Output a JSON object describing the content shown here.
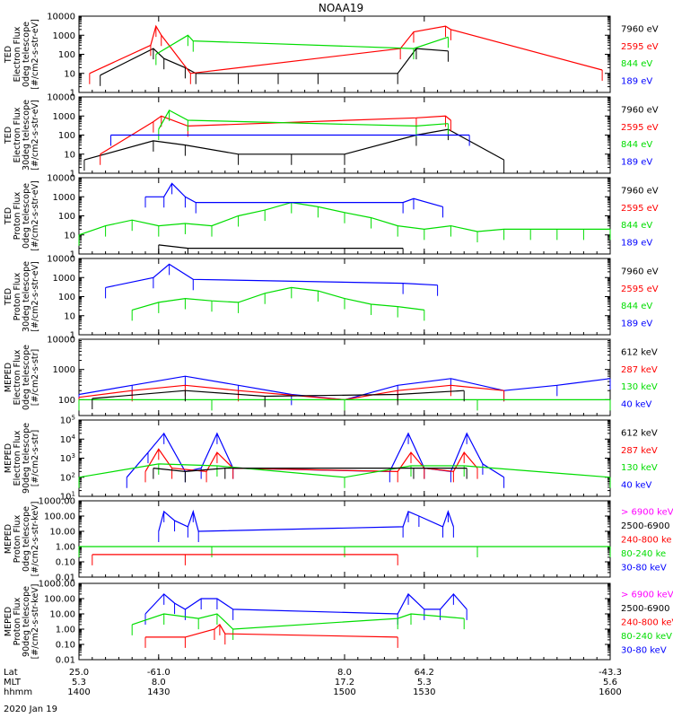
{
  "title": "NOAA19",
  "colors": {
    "black": "#000000",
    "red": "#ff0000",
    "green": "#00ff00",
    "blue": "#0000ff",
    "magenta": "#ff00ff",
    "lime_label": "#00dd00"
  },
  "chart_data": [
    {
      "type": "line",
      "ylabel": [
        "TED",
        "Electron Flux",
        "0deg telescope",
        "[#/cm2-s-str-eV]"
      ],
      "yscale": "log",
      "ylim": [
        1,
        10000
      ],
      "yticks": [
        "1",
        "10",
        "100",
        "1000",
        "10000"
      ],
      "legend": [
        {
          "label": "7960 eV",
          "color": "#000000"
        },
        {
          "label": "2595 eV",
          "color": "#ff0000"
        },
        {
          "label": "844 eV",
          "color": "#00dd00"
        },
        {
          "label": "189 eV",
          "color": "#0000ff"
        }
      ],
      "series": [
        {
          "name": "7960 eV",
          "color": "#000000",
          "x": [
            1408,
            1428,
            1432,
            1440,
            1444,
            1460,
            1475,
            1490,
            1520,
            1527,
            1539
          ],
          "values": [
            8,
            200,
            60,
            20,
            10,
            10,
            10,
            10,
            10,
            200,
            150
          ]
        },
        {
          "name": "2595 eV",
          "color": "#ff0000",
          "x": [
            1404,
            1427,
            1429,
            1431,
            1442,
            1521,
            1526,
            1538,
            1540,
            1597
          ],
          "values": [
            10,
            300,
            3000,
            1000,
            10,
            200,
            1500,
            3000,
            2000,
            15
          ]
        },
        {
          "name": "844 eV",
          "color": "#00dd00",
          "x": [
            1429,
            1441,
            1443,
            1526,
            1539
          ],
          "values": [
            100,
            1000,
            500,
            200,
            800
          ]
        }
      ]
    },
    {
      "type": "line",
      "ylabel": [
        "TED",
        "Electron Flux",
        "30deg telescope",
        "[#/cm2-s-str-eV]"
      ],
      "yscale": "log",
      "ylim": [
        1,
        10000
      ],
      "yticks": [
        "1",
        "10",
        "100",
        "1000",
        "10000"
      ],
      "legend": [
        {
          "label": "7960 eV",
          "color": "#000000"
        },
        {
          "label": "2595 eV",
          "color": "#ff0000"
        },
        {
          "label": "844 eV",
          "color": "#00dd00"
        },
        {
          "label": "189 eV",
          "color": "#0000ff"
        }
      ],
      "series": [
        {
          "name": "7960 eV",
          "color": "#000000",
          "x": [
            1402,
            1428,
            1440,
            1460,
            1480,
            1500,
            1527,
            1539,
            1560
          ],
          "values": [
            5,
            50,
            30,
            10,
            10,
            10,
            100,
            200,
            5
          ]
        },
        {
          "name": "2595 eV",
          "color": "#ff0000",
          "x": [
            1408,
            1428,
            1431,
            1441,
            1527,
            1538,
            1540
          ],
          "values": [
            10,
            500,
            1000,
            300,
            800,
            1000,
            600
          ]
        },
        {
          "name": "844 eV",
          "color": "#00dd00",
          "x": [
            1430,
            1434,
            1441,
            1527,
            1539
          ],
          "values": [
            200,
            2000,
            600,
            300,
            400
          ]
        },
        {
          "name": "189 eV",
          "color": "#0000ff",
          "x": [
            1412,
            1547
          ],
          "values": [
            100,
            100
          ]
        }
      ]
    },
    {
      "type": "line",
      "ylabel": [
        "TED",
        "Proton Flux",
        "0deg telescope",
        "[#/cm2-s-str-eV]"
      ],
      "yscale": "log",
      "ylim": [
        1,
        10000
      ],
      "yticks": [
        "1",
        "10",
        "100",
        "1000",
        "10000"
      ],
      "legend": [
        {
          "label": "7960 eV",
          "color": "#000000"
        },
        {
          "label": "2595 eV",
          "color": "#ff0000"
        },
        {
          "label": "844 eV",
          "color": "#00dd00"
        },
        {
          "label": "189 eV",
          "color": "#0000ff"
        }
      ],
      "series": [
        {
          "name": "844 eV",
          "color": "#00dd00",
          "x": [
            1400,
            1410,
            1420,
            1430,
            1440,
            1450,
            1460,
            1470,
            1480,
            1490,
            1500,
            1510,
            1520,
            1530,
            1540,
            1550,
            1560,
            1570,
            1580,
            1590,
            1600
          ],
          "values": [
            10,
            30,
            60,
            30,
            40,
            30,
            100,
            200,
            500,
            300,
            150,
            80,
            30,
            20,
            30,
            15,
            20,
            20,
            20,
            20,
            20
          ]
        },
        {
          "name": "189 eV",
          "color": "#0000ff",
          "x": [
            1425,
            1432,
            1435,
            1440,
            1444,
            1522,
            1526,
            1537
          ],
          "values": [
            1000,
            1000,
            5000,
            1000,
            500,
            500,
            800,
            300
          ]
        },
        {
          "name": "7960 eV",
          "color": "#000000",
          "x": [
            1430,
            1441,
            1522
          ],
          "values": [
            3,
            2,
            2
          ]
        }
      ]
    },
    {
      "type": "line",
      "ylabel": [
        "TED",
        "Proton Flux",
        "30deg telescope",
        "[#/cm2-s-str-eV]"
      ],
      "yscale": "log",
      "ylim": [
        1,
        10000
      ],
      "yticks": [
        "1",
        "10",
        "100",
        "1000",
        "10000"
      ],
      "legend": [
        {
          "label": "7960 eV",
          "color": "#000000"
        },
        {
          "label": "2595 eV",
          "color": "#ff0000"
        },
        {
          "label": "844 eV",
          "color": "#00dd00"
        },
        {
          "label": "189 eV",
          "color": "#0000ff"
        }
      ],
      "series": [
        {
          "name": "844 eV",
          "color": "#00dd00",
          "x": [
            1420,
            1430,
            1440,
            1450,
            1460,
            1470,
            1480,
            1490,
            1500,
            1510,
            1520,
            1530
          ],
          "values": [
            20,
            50,
            80,
            60,
            50,
            150,
            300,
            200,
            80,
            40,
            30,
            20
          ]
        },
        {
          "name": "189 eV",
          "color": "#0000ff",
          "x": [
            1410,
            1428,
            1434,
            1443,
            1522,
            1535
          ],
          "values": [
            300,
            1000,
            5000,
            800,
            500,
            400
          ]
        }
      ]
    },
    {
      "type": "line",
      "ylabel": [
        "MEPED",
        "Electron Flux",
        "0deg telescope",
        "[#/cm2-s-str]"
      ],
      "yscale": "log",
      "ylim": [
        30,
        10000
      ],
      "yticks": [
        "100",
        "1000",
        "10000"
      ],
      "legend": [
        {
          "label": "612 keV",
          "color": "#000000"
        },
        {
          "label": "287 keV",
          "color": "#ff0000"
        },
        {
          "label": "130 keV",
          "color": "#00dd00"
        },
        {
          "label": "40 keV",
          "color": "#0000ff"
        }
      ],
      "series": [
        {
          "name": "40 keV",
          "color": "#0000ff",
          "x": [
            1400,
            1420,
            1440,
            1460,
            1480,
            1500,
            1520,
            1540,
            1560,
            1580,
            1600
          ],
          "values": [
            150,
            300,
            600,
            300,
            150,
            100,
            300,
            500,
            200,
            300,
            500
          ]
        },
        {
          "name": "287 keV",
          "color": "#ff0000",
          "x": [
            1400,
            1420,
            1440,
            1460,
            1500,
            1520,
            1540,
            1560
          ],
          "values": [
            120,
            200,
            300,
            200,
            100,
            200,
            300,
            200
          ]
        },
        {
          "name": "130 keV",
          "color": "#00dd00",
          "x": [
            1400,
            1450,
            1500,
            1550,
            1600
          ],
          "values": [
            100,
            100,
            100,
            100,
            100
          ]
        },
        {
          "name": "612 keV",
          "color": "#000000",
          "x": [
            1405,
            1440,
            1470,
            1520,
            1545
          ],
          "values": [
            110,
            200,
            130,
            150,
            200
          ]
        }
      ]
    },
    {
      "type": "line",
      "ylabel": [
        "MEPED",
        "Electron Flux",
        "90deg telescope",
        "[#/cm2-s-str]"
      ],
      "yscale": "log",
      "ylim": [
        10,
        100000
      ],
      "yticks": [
        "10^1",
        "10^2",
        "10^3",
        "10^4",
        "10^5"
      ],
      "legend": [
        {
          "label": "612 keV",
          "color": "#000000"
        },
        {
          "label": "287 keV",
          "color": "#ff0000"
        },
        {
          "label": "130 keV",
          "color": "#00dd00"
        },
        {
          "label": "40 keV",
          "color": "#0000ff"
        }
      ],
      "series": [
        {
          "name": "40 keV",
          "color": "#0000ff",
          "x": [
            1418,
            1426,
            1432,
            1440,
            1446,
            1452,
            1458,
            1517,
            1524,
            1530,
            1540,
            1546,
            1552,
            1560
          ],
          "values": [
            100,
            2000,
            20000,
            200,
            300,
            20000,
            300,
            200,
            20000,
            300,
            200,
            20000,
            500,
            100
          ]
        },
        {
          "name": "287 keV",
          "color": "#ff0000",
          "x": [
            1425,
            1430,
            1435,
            1448,
            1452,
            1458,
            1520,
            1525,
            1530,
            1541,
            1545,
            1550
          ],
          "values": [
            200,
            3000,
            300,
            200,
            2000,
            300,
            200,
            2000,
            300,
            200,
            2000,
            300
          ]
        },
        {
          "name": "130 keV",
          "color": "#00dd00",
          "x": [
            1400,
            1430,
            1452,
            1500,
            1525,
            1545,
            1600
          ],
          "values": [
            100,
            500,
            400,
            100,
            400,
            400,
            100
          ]
        },
        {
          "name": "612 keV",
          "color": "#000000",
          "x": [
            1428,
            1440,
            1455,
            1526,
            1546
          ],
          "values": [
            300,
            200,
            300,
            300,
            300
          ]
        }
      ]
    },
    {
      "type": "line",
      "ylabel": [
        "MEPED",
        "Proton Flux",
        "0deg telescope",
        "[#/cm2-s-str-keV]"
      ],
      "yscale": "log",
      "ylim": [
        0.01,
        1000
      ],
      "yticks": [
        "0.01",
        "0.10",
        "1.00",
        "10.00",
        "100.00",
        "1000.00"
      ],
      "legend": [
        {
          "label": "> 6900 keV",
          "color": "#ff00ff"
        },
        {
          "label": "2500-6900",
          "color": "#000000"
        },
        {
          "label": "240-800 ke",
          "color": "#ff0000"
        },
        {
          "label": "80-240 ke",
          "color": "#00dd00"
        },
        {
          "label": "30-80 keV",
          "color": "#0000ff"
        }
      ],
      "series": [
        {
          "name": "30-80 keV",
          "color": "#0000ff",
          "x": [
            1430,
            1432,
            1436,
            1441,
            1443,
            1445,
            1522,
            1524,
            1528,
            1537,
            1539,
            1541
          ],
          "values": [
            10,
            200,
            50,
            20,
            200,
            10,
            20,
            200,
            100,
            20,
            200,
            20
          ]
        },
        {
          "name": "80-240 keV",
          "color": "#00dd00",
          "x": [
            1400,
            1450,
            1500,
            1550,
            1600
          ],
          "values": [
            1,
            1,
            1,
            1,
            1
          ]
        },
        {
          "name": "240-800 keV",
          "color": "#ff0000",
          "x": [
            1405,
            1440,
            1520
          ],
          "values": [
            0.3,
            0.3,
            0.3
          ]
        }
      ]
    },
    {
      "type": "line",
      "ylabel": [
        "MEPED",
        "Proton Flux",
        "90deg telescope",
        "[#/cm2-s-str-keV]"
      ],
      "yscale": "log",
      "ylim": [
        0.01,
        1000
      ],
      "yticks": [
        "0.01",
        "0.10",
        "1.00",
        "10.00",
        "100.00",
        "1000.00"
      ],
      "legend": [
        {
          "label": "> 6900 keV",
          "color": "#ff00ff"
        },
        {
          "label": "2500-6900",
          "color": "#000000"
        },
        {
          "label": "240-800 keV",
          "color": "#ff0000"
        },
        {
          "label": "80-240 keV",
          "color": "#00dd00"
        },
        {
          "label": "30-80 keV",
          "color": "#0000ff"
        }
      ],
      "series": [
        {
          "name": "30-80 keV",
          "color": "#0000ff",
          "x": [
            1425,
            1432,
            1436,
            1440,
            1446,
            1452,
            1458,
            1520,
            1524,
            1530,
            1536,
            1541,
            1546
          ],
          "values": [
            10,
            200,
            50,
            20,
            100,
            100,
            20,
            10,
            200,
            20,
            20,
            200,
            20
          ]
        },
        {
          "name": "80-240 keV",
          "color": "#00dd00",
          "x": [
            1420,
            1432,
            1445,
            1452,
            1458,
            1520,
            1525,
            1545
          ],
          "values": [
            2,
            10,
            5,
            10,
            1,
            5,
            10,
            5
          ]
        },
        {
          "name": "240-800 keV",
          "color": "#ff0000",
          "x": [
            1425,
            1440,
            1451,
            1453,
            1455,
            1520
          ],
          "values": [
            0.3,
            0.3,
            1,
            2,
            0.5,
            0.3
          ]
        }
      ]
    }
  ],
  "xaxis": {
    "xlim": [
      1400,
      1600
    ],
    "rows": [
      {
        "label": "Lat",
        "values": [
          "25.0",
          "-61.0",
          "8.0",
          "64.2",
          "-43.3"
        ]
      },
      {
        "label": "MLT",
        "values": [
          "5.3",
          "8.0",
          "17.2",
          "5.3",
          "5.6"
        ]
      },
      {
        "label": "hhmm",
        "values": [
          "1400",
          "1430",
          "1500",
          "1530",
          "1600"
        ]
      }
    ],
    "tick_times": [
      1400,
      1430,
      1500,
      1530,
      1600
    ],
    "date": "2020 Jan 19"
  }
}
